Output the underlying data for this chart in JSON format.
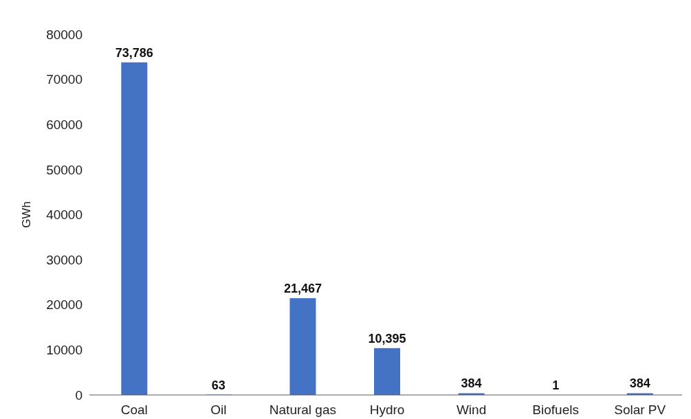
{
  "chart_data": {
    "type": "bar",
    "ylabel": "GWh",
    "categories": [
      "Coal",
      "Oil",
      "Natural gas",
      "Hydro",
      "Wind",
      "Biofuels",
      "Solar PV"
    ],
    "values": [
      73786,
      63,
      21467,
      10395,
      384,
      1,
      384
    ],
    "value_labels": [
      "73,786",
      "63",
      "21,467",
      "10,395",
      "384",
      "1",
      "384"
    ],
    "color": "#4472c4",
    "ylim": [
      0,
      80000
    ],
    "yticks": [
      0,
      10000,
      20000,
      30000,
      40000,
      50000,
      60000,
      70000,
      80000
    ],
    "grid": false
  }
}
